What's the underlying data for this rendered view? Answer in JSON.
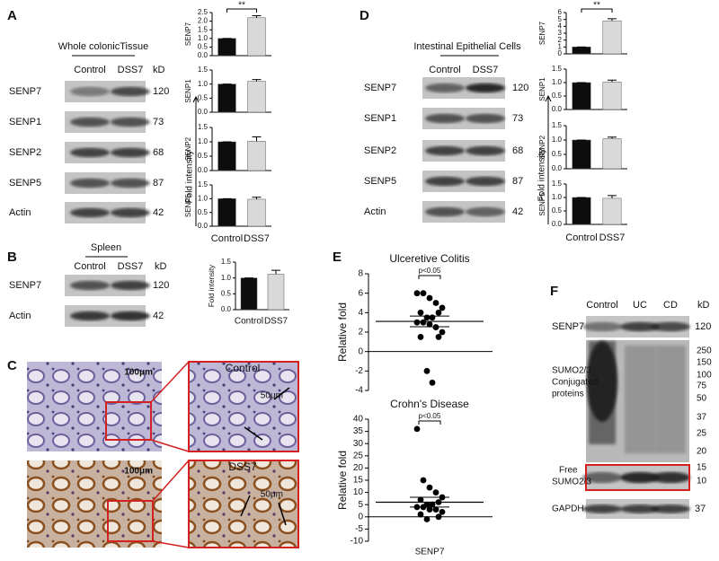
{
  "panels": {
    "A": {
      "label": "A",
      "blot": {
        "title": "Whole colonicTissue",
        "lanes": [
          "Control",
          "DSS7"
        ],
        "kd_header": "kD",
        "rows": [
          {
            "name": "SENP7",
            "kd": "120"
          },
          {
            "name": "SENP1",
            "kd": "73"
          },
          {
            "name": "SENP2",
            "kd": "68"
          },
          {
            "name": "SENP5",
            "kd": "87"
          },
          {
            "name": "Actin",
            "kd": "42"
          }
        ]
      }
    },
    "B": {
      "label": "B",
      "blot": {
        "title": "Spleen",
        "lanes": [
          "Control",
          "DSS7"
        ],
        "kd_header": "kD",
        "rows": [
          {
            "name": "SENP7",
            "kd": "120"
          },
          {
            "name": "Actin",
            "kd": "42"
          }
        ]
      }
    },
    "C": {
      "label": "C",
      "images": [
        {
          "scale": "100μm"
        },
        {
          "title": "Control",
          "scale": "50μm"
        },
        {
          "scale": "100μm"
        },
        {
          "title": "DSS7",
          "scale": "50μm"
        }
      ]
    },
    "D": {
      "label": "D",
      "blot": {
        "title": "Intestinal Epithelial Cells",
        "lanes": [
          "Control",
          "DSS7"
        ],
        "rows": [
          {
            "name": "SENP7",
            "kd": "120"
          },
          {
            "name": "SENP1",
            "kd": "73"
          },
          {
            "name": "SENP2",
            "kd": "68"
          },
          {
            "name": "SENP5",
            "kd": "87"
          },
          {
            "name": "Actin",
            "kd": "42"
          }
        ]
      }
    },
    "E": {
      "label": "E"
    },
    "F": {
      "label": "F",
      "lanes": [
        "Control",
        "UC",
        "CD"
      ],
      "kd_header": "kD",
      "senp7": {
        "name": "SENP7",
        "kd": "120"
      },
      "conjugated": {
        "label_lines": [
          "SUMO2/3",
          "Conjugated",
          "proteins"
        ]
      },
      "markers": [
        "250",
        "150",
        "100",
        "75",
        "50",
        "37",
        "25",
        "20",
        "15",
        "10"
      ],
      "free": {
        "label_lines": [
          "Free",
          "SUMO2/3"
        ]
      },
      "gapdh": {
        "name": "GAPDH",
        "kd": "37"
      }
    }
  },
  "chart_data": [
    {
      "type": "bar",
      "ylabel": "Fold intensity",
      "categories": [
        "Control",
        "DSS7"
      ],
      "colors": [
        "#0d0d0d",
        "#d9d9d9"
      ],
      "plots": [
        {
          "title": "SENP7",
          "values": [
            1,
            2.2
          ],
          "errors": [
            0,
            0.12
          ],
          "annotation": "**",
          "ylim": [
            0,
            2.5
          ],
          "yticks": [
            {
              "value": 0,
              "label": "0.0"
            },
            0.5,
            {
              "value": 1,
              "label": "1.0"
            },
            1.5,
            {
              "value": 2,
              "label": "2.0"
            },
            2.5
          ]
        },
        {
          "title": "SENP1",
          "values": [
            1,
            1.1
          ],
          "errors": [
            0,
            0.06
          ],
          "ylim": [
            0,
            1.5
          ],
          "yticks": [
            {
              "value": 0,
              "label": "0.0"
            },
            0.5,
            {
              "value": 1,
              "label": "1.0"
            },
            1.5
          ]
        },
        {
          "title": "SENP2",
          "values": [
            1,
            1.02
          ],
          "errors": [
            0,
            0.15
          ],
          "ylim": [
            0,
            1.5
          ],
          "yticks": [
            {
              "value": 0,
              "label": "0.0"
            },
            0.5,
            {
              "value": 1,
              "label": "1.0"
            },
            1.5
          ]
        },
        {
          "title": "SENP5",
          "values": [
            1,
            0.98
          ],
          "errors": [
            0,
            0.07
          ],
          "ylim": [
            0,
            1.5
          ],
          "yticks": [
            {
              "value": 0,
              "label": "0.0"
            },
            0.5,
            {
              "value": 1,
              "label": "1.0"
            },
            1.5
          ]
        }
      ]
    },
    {
      "type": "bar",
      "ylabel": "Fold intensity",
      "categories": [
        "Control",
        "DSS7"
      ],
      "colors": [
        "#0d0d0d",
        "#d9d9d9"
      ],
      "plots": [
        {
          "title": "SENP7",
          "values": [
            1,
            4.8
          ],
          "errors": [
            0,
            0.3
          ],
          "annotation": "**",
          "ylim": [
            0,
            6
          ],
          "yticks": [
            0,
            1,
            2,
            3,
            4,
            5,
            6
          ]
        },
        {
          "title": "SENP1",
          "values": [
            1,
            1.02
          ],
          "errors": [
            0,
            0.07
          ],
          "ylim": [
            0,
            1.5
          ],
          "yticks": [
            {
              "value": 0,
              "label": "0.0"
            },
            0.5,
            {
              "value": 1,
              "label": "1.0"
            },
            1.5
          ]
        },
        {
          "title": "SENP2",
          "values": [
            1,
            1.05
          ],
          "errors": [
            0,
            0.05
          ],
          "ylim": [
            0,
            1.5
          ],
          "yticks": [
            {
              "value": 0,
              "label": "0.0"
            },
            0.5,
            {
              "value": 1,
              "label": "1.0"
            },
            1.5
          ]
        },
        {
          "title": "SENP5",
          "values": [
            1,
            0.97
          ],
          "errors": [
            0,
            0.1
          ],
          "ylim": [
            0,
            1.5
          ],
          "yticks": [
            {
              "value": 0,
              "label": "0.0"
            },
            0.5,
            {
              "value": 1,
              "label": "1.0"
            },
            1.5
          ]
        }
      ]
    },
    {
      "type": "bar",
      "ylabel": "Fold intensity",
      "categories": [
        "Control",
        "DSS7"
      ],
      "colors": [
        "#0d0d0d",
        "#d9d9d9"
      ],
      "plots": [
        {
          "values": [
            1,
            1.12
          ],
          "errors": [
            0,
            0.12
          ],
          "ylim": [
            0,
            1.5
          ],
          "yticks": [
            {
              "value": 0,
              "label": "0.0"
            },
            0.5,
            {
              "value": 1,
              "label": "1.0"
            },
            1.5
          ]
        }
      ]
    },
    {
      "type": "dot",
      "xlabel": "SENP7",
      "plots": [
        {
          "title": "Ulceretive Colitis",
          "ylabel": "Relative fold",
          "annotation": "p<0.05",
          "values": [
            6,
            6,
            5.5,
            5,
            4.5,
            4,
            4,
            3.5,
            3.5,
            3,
            3,
            2.8,
            2.5,
            2,
            1.5,
            1.5,
            -2,
            -3.2
          ],
          "mean": 3.1,
          "sem": 0.55,
          "ylim": [
            -4,
            8
          ],
          "yticks": [
            -4,
            -2,
            0,
            2,
            4,
            6,
            8
          ]
        },
        {
          "title": "Crohn's Disease",
          "ylabel": "Relative fold",
          "annotation": "p<0.05",
          "values": [
            36,
            15,
            12,
            10,
            8,
            7,
            6,
            5,
            5,
            4,
            4,
            3,
            3,
            2,
            1,
            0,
            -1
          ],
          "mean": 6,
          "sem": 2,
          "ylim": [
            -10,
            40
          ],
          "yticks": [
            -10,
            -5,
            0,
            5,
            10,
            15,
            20,
            25,
            30,
            35,
            40
          ]
        }
      ]
    }
  ]
}
